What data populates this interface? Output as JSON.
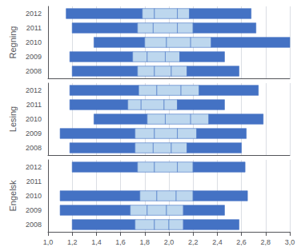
{
  "chart_data": [
    {
      "type": "bar",
      "orientation": "horizontal",
      "title": "Regning",
      "categories": [
        "2012",
        "2011",
        "2010",
        "2009",
        "2008"
      ],
      "series": [
        {
          "color": "#4472C4",
          "values": [
            [
              1.15,
              1.78
            ],
            [
              1.2,
              1.74
            ],
            [
              1.38,
              1.8
            ],
            [
              1.18,
              1.7
            ],
            [
              1.2,
              1.74
            ]
          ]
        },
        {
          "color": "#BDD7EE",
          "values": [
            [
              1.78,
              1.88
            ],
            [
              1.74,
              1.87
            ],
            [
              1.8,
              1.98
            ],
            [
              1.7,
              1.82
            ],
            [
              1.74,
              1.88
            ]
          ]
        },
        {
          "color": "#BDD7EE",
          "values": [
            [
              1.88,
              2.07
            ],
            [
              1.87,
              2.07
            ],
            [
              1.98,
              2.18
            ],
            [
              1.82,
              1.97
            ],
            [
              1.88,
              2.02
            ]
          ]
        },
        {
          "color": "#BDD7EE",
          "values": [
            [
              2.07,
              2.17
            ],
            [
              2.07,
              2.2
            ],
            [
              2.18,
              2.35
            ],
            [
              1.97,
              2.09
            ],
            [
              2.02,
              2.15
            ]
          ]
        },
        {
          "color": "#4472C4",
          "values": [
            [
              2.17,
              2.68
            ],
            [
              2.2,
              2.72
            ],
            [
              2.35,
              3.0
            ],
            [
              2.09,
              2.46
            ],
            [
              2.15,
              2.58
            ]
          ]
        }
      ],
      "xlim": [
        1.0,
        3.0
      ],
      "xticks": [
        {
          "value": 1.0,
          "label": "1,0"
        },
        {
          "value": 1.2,
          "label": "1,2"
        },
        {
          "value": 1.4,
          "label": "1,4"
        },
        {
          "value": 1.6,
          "label": "1,6"
        },
        {
          "value": 1.8,
          "label": "1,8"
        },
        {
          "value": 2.0,
          "label": "2,0"
        },
        {
          "value": 2.2,
          "label": "2,2"
        },
        {
          "value": 2.4,
          "label": "2,4"
        },
        {
          "value": 2.6,
          "label": "2,6"
        },
        {
          "value": 2.8,
          "label": "2,8"
        },
        {
          "value": 3.0,
          "label": "3,0"
        }
      ],
      "grid": true,
      "tick_labels": "y"
    },
    {
      "type": "bar",
      "orientation": "horizontal",
      "title": "Lesing",
      "categories": [
        "2012",
        "2011",
        "2010",
        "2009",
        "2008"
      ],
      "series": [
        {
          "color": "#4472C4",
          "values": [
            [
              1.18,
              1.75
            ],
            [
              1.18,
              1.66
            ],
            [
              1.38,
              1.82
            ],
            [
              1.1,
              1.72
            ],
            [
              1.18,
              1.72
            ]
          ]
        },
        {
          "color": "#BDD7EE",
          "values": [
            [
              1.75,
              1.9
            ],
            [
              1.66,
              1.77
            ],
            [
              1.82,
              1.97
            ],
            [
              1.72,
              1.88
            ],
            [
              1.72,
              1.87
            ]
          ]
        },
        {
          "color": "#BDD7EE",
          "values": [
            [
              1.9,
              2.1
            ],
            [
              1.77,
              1.96
            ],
            [
              1.97,
              2.18
            ],
            [
              1.88,
              2.07
            ],
            [
              1.87,
              2.02
            ]
          ]
        },
        {
          "color": "#BDD7EE",
          "values": [
            [
              2.1,
              2.25
            ],
            [
              1.96,
              2.07
            ],
            [
              2.18,
              2.33
            ],
            [
              2.07,
              2.23
            ],
            [
              2.02,
              2.15
            ]
          ]
        },
        {
          "color": "#4472C4",
          "values": [
            [
              2.25,
              2.74
            ],
            [
              2.07,
              2.46
            ],
            [
              2.33,
              2.78
            ],
            [
              2.23,
              2.64
            ],
            [
              2.15,
              2.6
            ]
          ]
        }
      ],
      "xlim": [
        1.0,
        3.0
      ],
      "xticks": [
        {
          "value": 1.0,
          "label": "1,0"
        },
        {
          "value": 1.2,
          "label": "1,2"
        },
        {
          "value": 1.4,
          "label": "1,4"
        },
        {
          "value": 1.6,
          "label": "1,6"
        },
        {
          "value": 1.8,
          "label": "1,8"
        },
        {
          "value": 2.0,
          "label": "2,0"
        },
        {
          "value": 2.2,
          "label": "2,2"
        },
        {
          "value": 2.4,
          "label": "2,4"
        },
        {
          "value": 2.6,
          "label": "2,6"
        },
        {
          "value": 2.8,
          "label": "2,8"
        },
        {
          "value": 3.0,
          "label": "3,0"
        }
      ],
      "grid": true,
      "tick_labels": "y"
    },
    {
      "type": "bar",
      "orientation": "horizontal",
      "title": "Engelsk",
      "categories": [
        "2012",
        "2011",
        "2010",
        "2009",
        "2008"
      ],
      "series": [
        {
          "color": "#4472C4",
          "values": [
            [
              1.2,
              1.74
            ],
            null,
            [
              1.1,
              1.76
            ],
            [
              1.1,
              1.68
            ],
            [
              1.2,
              1.72
            ]
          ]
        },
        {
          "color": "#BDD7EE",
          "values": [
            [
              1.74,
              1.88
            ],
            null,
            [
              1.76,
              1.9
            ],
            [
              1.68,
              1.82
            ],
            [
              1.72,
              1.88
            ]
          ]
        },
        {
          "color": "#BDD7EE",
          "values": [
            [
              1.88,
              2.07
            ],
            null,
            [
              1.9,
              2.06
            ],
            [
              1.82,
              1.98
            ],
            [
              1.88,
              2.0
            ]
          ]
        },
        {
          "color": "#BDD7EE",
          "values": [
            [
              2.07,
              2.2
            ],
            null,
            [
              2.06,
              2.2
            ],
            [
              1.98,
              2.12
            ],
            [
              2.0,
              2.12
            ]
          ]
        },
        {
          "color": "#4472C4",
          "values": [
            [
              2.2,
              2.63
            ],
            null,
            [
              2.2,
              2.65
            ],
            [
              2.12,
              2.46
            ],
            [
              2.12,
              2.58
            ]
          ]
        }
      ],
      "xlim": [
        1.0,
        3.0
      ],
      "xticks": [
        {
          "value": 1.0,
          "label": "1,0"
        },
        {
          "value": 1.2,
          "label": "1,2"
        },
        {
          "value": 1.4,
          "label": "1,4"
        },
        {
          "value": 1.6,
          "label": "1,6"
        },
        {
          "value": 1.8,
          "label": "1,8"
        },
        {
          "value": 2.0,
          "label": "2,0"
        },
        {
          "value": 2.2,
          "label": "2,2"
        },
        {
          "value": 2.4,
          "label": "2,4"
        },
        {
          "value": 2.6,
          "label": "2,6"
        },
        {
          "value": 2.8,
          "label": "2,8"
        },
        {
          "value": 3.0,
          "label": "3,0"
        }
      ],
      "grid": true
    }
  ]
}
